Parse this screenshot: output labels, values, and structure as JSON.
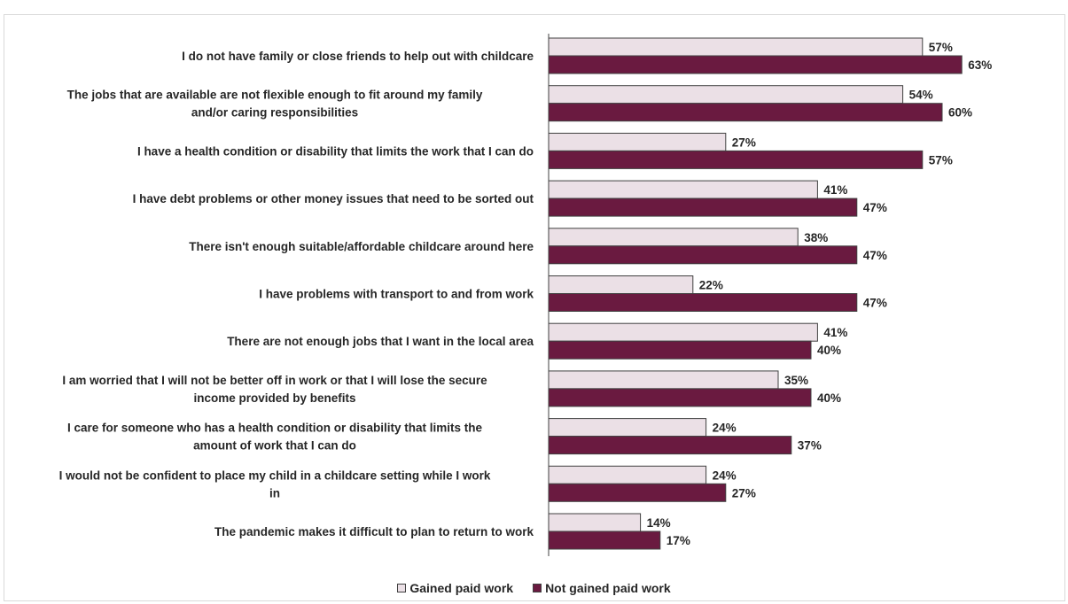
{
  "chart_data": {
    "type": "bar",
    "orientation": "horizontal",
    "categories": [
      "I do not have family or close friends to help out with childcare",
      "The jobs that are available are not flexible enough to fit around my family and/or caring responsibilities",
      "I have a health condition or disability that limits the work that I can do",
      "I have debt problems or other money issues that need to be sorted out",
      "There isn't enough suitable/affordable childcare around here",
      "I have problems with transport to and from work",
      "There are not enough jobs that I want in the local area",
      "I am worried that I will not be better off in work or that I will lose the secure income provided by benefits",
      "I care for someone who has a health condition or disability that limits the amount of work that I can do",
      "I would not be confident to place my child in a childcare setting while I work in",
      "The pandemic makes it difficult to plan to return to work"
    ],
    "category_lines": [
      [
        "I do not have family or close friends to help out with childcare"
      ],
      [
        "The jobs that are available are not flexible enough to fit around my family",
        "and/or caring responsibilities"
      ],
      [
        "I have a health condition or disability that limits the work that I can do"
      ],
      [
        "I have debt problems or other money issues that need to be sorted out"
      ],
      [
        "There isn't enough suitable/affordable childcare around here"
      ],
      [
        "I have problems with transport to and from work"
      ],
      [
        "There are not enough jobs that I want in the local area"
      ],
      [
        "I am worried that I will not be better off in work or that I will lose the secure",
        "income provided by benefits"
      ],
      [
        "I care for someone who has a health condition or disability that limits the",
        "amount of work that I can do"
      ],
      [
        "I would not be confident to place my child in a childcare setting while I work",
        "in"
      ],
      [
        "The pandemic makes it difficult to plan to return to work"
      ]
    ],
    "series": [
      {
        "name": "Gained paid work",
        "color": "#ebe0e6",
        "values": [
          57,
          54,
          27,
          41,
          38,
          22,
          41,
          35,
          24,
          24,
          14
        ],
        "labels": [
          "57%",
          "54%",
          "27%",
          "41%",
          "38%",
          "22%",
          "41%",
          "35%",
          "24%",
          "24%",
          "14%"
        ]
      },
      {
        "name": "Not gained paid work",
        "color": "#6a1a40",
        "values": [
          63,
          60,
          57,
          47,
          47,
          47,
          40,
          40,
          37,
          27,
          17
        ],
        "labels": [
          "63%",
          "60%",
          "57%",
          "47%",
          "47%",
          "47%",
          "40%",
          "40%",
          "37%",
          "27%",
          "17%"
        ]
      }
    ],
    "unit": "%",
    "xlim": [
      0,
      100
    ],
    "grid": false,
    "legend_position": "bottom"
  }
}
